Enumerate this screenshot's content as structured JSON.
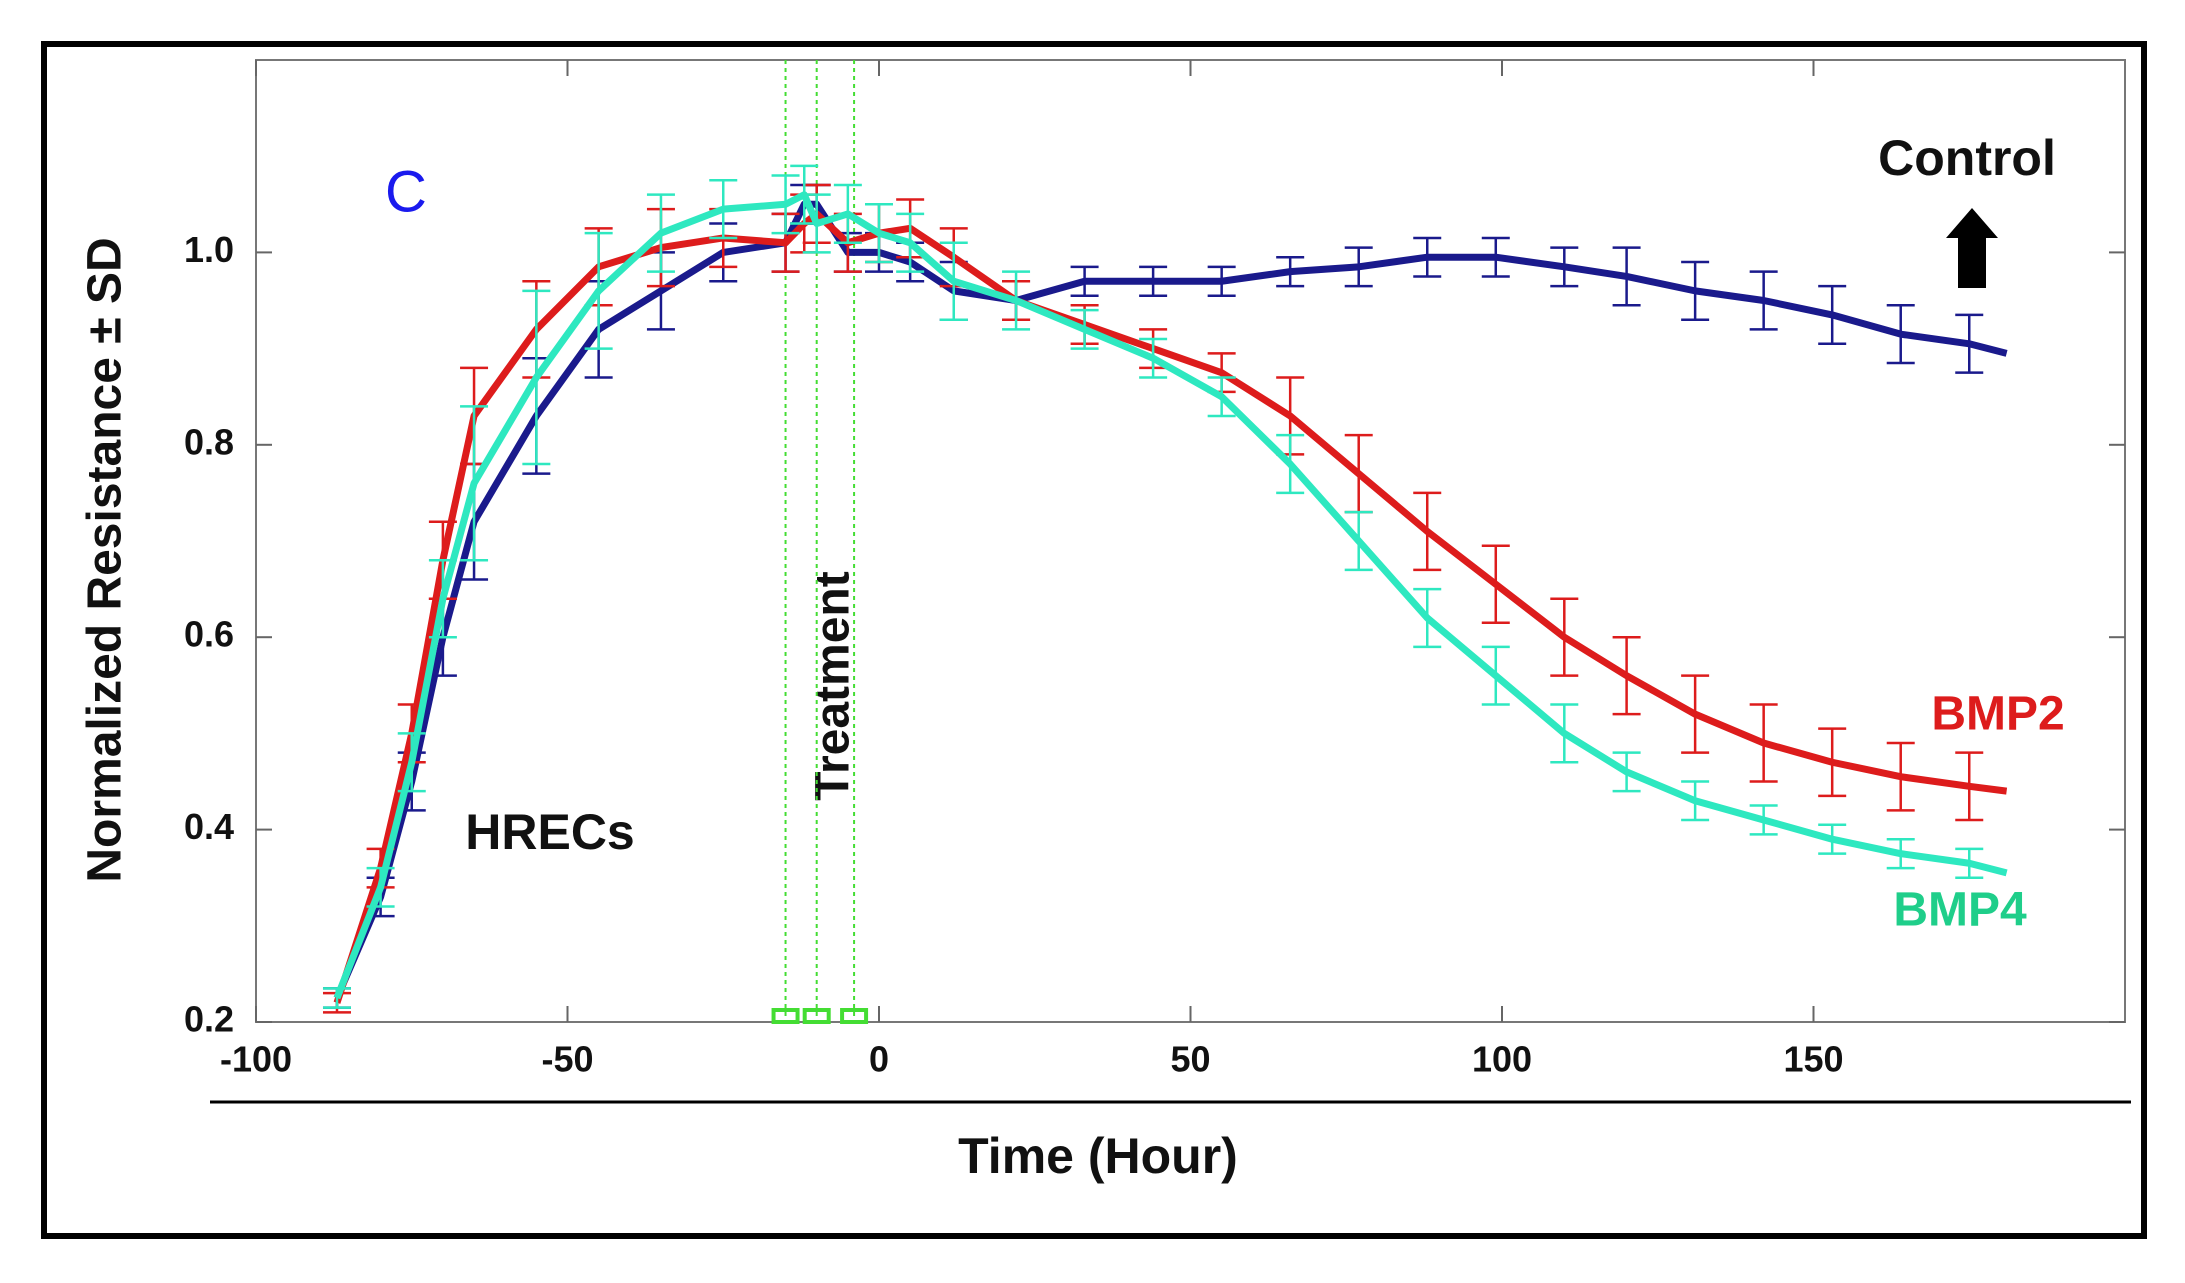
{
  "chart_data": {
    "type": "line",
    "panel_label": "C",
    "xlabel": "Time (Hour)",
    "ylabel": "Normalized Resistance ± SD",
    "annotations": {
      "cells": "HRECs",
      "treatment": "Treatment",
      "control_note": "Control"
    },
    "treatment_x": [
      -15,
      -10,
      -4
    ],
    "treatment_color": "#44dd33",
    "x": [
      -87,
      -80,
      -75,
      -70,
      -65,
      -55,
      -45,
      -35,
      -25,
      -15,
      -12,
      -10,
      -5,
      0,
      5,
      12,
      22,
      33,
      44,
      55,
      66,
      77,
      88,
      99,
      110,
      120,
      131,
      142,
      153,
      164,
      175,
      181
    ],
    "series": [
      {
        "name": "Control",
        "color": "#1a1a8c",
        "values": [
          0.225,
          0.33,
          0.45,
          0.6,
          0.72,
          0.83,
          0.92,
          0.96,
          1.0,
          1.01,
          1.05,
          1.05,
          1.0,
          1.0,
          0.99,
          0.96,
          0.95,
          0.97,
          0.97,
          0.97,
          0.98,
          0.985,
          0.995,
          0.995,
          0.985,
          0.975,
          0.96,
          0.95,
          0.935,
          0.915,
          0.905,
          0.895
        ],
        "errors": [
          0.01,
          0.02,
          0.03,
          0.04,
          0.06,
          0.06,
          0.05,
          0.04,
          0.03,
          0.03,
          0.02,
          0.02,
          0.02,
          0.02,
          0.02,
          0.03,
          0.02,
          0.015,
          0.015,
          0.015,
          0.015,
          0.02,
          0.02,
          0.02,
          0.02,
          0.03,
          0.03,
          0.03,
          0.03,
          0.03,
          0.03,
          null
        ]
      },
      {
        "name": "BMP2",
        "color": "#dd1c1c",
        "values": [
          0.22,
          0.36,
          0.5,
          0.68,
          0.83,
          0.92,
          0.985,
          1.005,
          1.015,
          1.01,
          1.03,
          1.04,
          1.01,
          1.02,
          1.025,
          0.995,
          0.95,
          0.925,
          0.9,
          0.875,
          0.83,
          0.77,
          0.71,
          0.655,
          0.6,
          0.56,
          0.52,
          0.49,
          0.47,
          0.455,
          0.445,
          0.44
        ],
        "errors": [
          0.01,
          0.02,
          0.03,
          0.04,
          0.05,
          0.05,
          0.04,
          0.04,
          0.03,
          0.03,
          0.03,
          0.03,
          0.03,
          0.03,
          0.03,
          0.03,
          0.02,
          0.02,
          0.02,
          0.02,
          0.04,
          0.04,
          0.04,
          0.04,
          0.04,
          0.04,
          0.04,
          0.04,
          0.035,
          0.035,
          0.035,
          null
        ]
      },
      {
        "name": "BMP4",
        "color": "#2ee8c0",
        "label_color": "#1fce8a",
        "values": [
          0.225,
          0.34,
          0.47,
          0.64,
          0.76,
          0.87,
          0.96,
          1.02,
          1.045,
          1.05,
          1.06,
          1.03,
          1.04,
          1.02,
          1.01,
          0.97,
          0.95,
          0.92,
          0.89,
          0.85,
          0.78,
          0.7,
          0.62,
          0.56,
          0.5,
          0.46,
          0.43,
          0.41,
          0.39,
          0.375,
          0.365,
          0.355
        ],
        "errors": [
          0.01,
          0.02,
          0.03,
          0.04,
          0.08,
          0.09,
          0.06,
          0.04,
          0.03,
          0.03,
          0.03,
          0.03,
          0.03,
          0.03,
          0.03,
          0.04,
          0.03,
          0.02,
          0.02,
          0.02,
          0.03,
          0.03,
          0.03,
          0.03,
          0.03,
          0.02,
          0.02,
          0.015,
          0.015,
          0.015,
          0.015,
          null
        ]
      }
    ],
    "xlim": [
      -100,
      200
    ],
    "xticks": [
      -100,
      -50,
      0,
      50,
      100,
      150
    ],
    "ylim": [
      0.2,
      1.2
    ],
    "yticks": [
      0.2,
      0.4,
      0.6,
      0.8,
      {
        "value": 1,
        "label": "1.0"
      }
    ]
  }
}
